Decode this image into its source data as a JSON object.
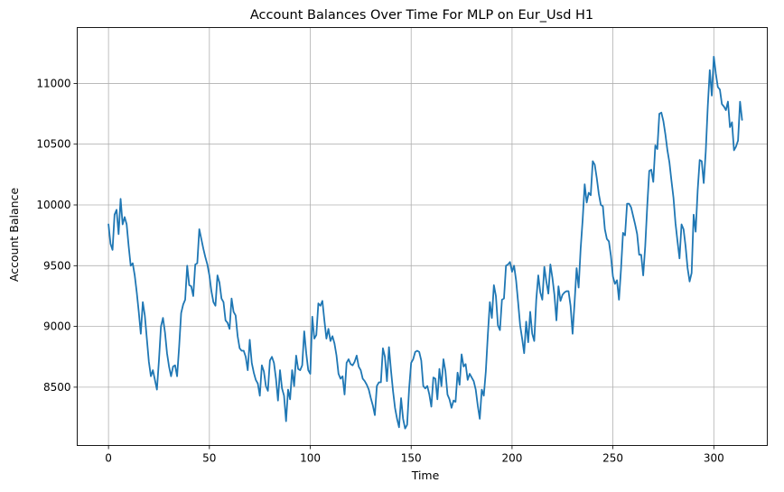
{
  "chart_data": {
    "type": "line",
    "title": "Account Balances Over Time For MLP on Eur_Usd H1",
    "xlabel": "Time",
    "ylabel": "Account Balance",
    "xlim": [
      -15.5,
      326.5
    ],
    "ylim": [
      8020,
      11460
    ],
    "x_ticks": [
      0,
      50,
      100,
      150,
      200,
      250,
      300
    ],
    "y_ticks": [
      8500,
      9000,
      9500,
      10000,
      10500,
      11000
    ],
    "x_tick_labels": [
      "0",
      "50",
      "100",
      "150",
      "200",
      "250",
      "300"
    ],
    "y_tick_labels": [
      "8500",
      "9000",
      "9500",
      "10000",
      "10500",
      "11000"
    ],
    "grid": true,
    "line_color": "#1f77b4",
    "series": [
      {
        "values": [
          9840,
          9680,
          9630,
          9920,
          9960,
          9760,
          10050,
          9840,
          9900,
          9840,
          9660,
          9500,
          9520,
          9420,
          9280,
          9120,
          8940,
          9200,
          9090,
          8900,
          8710,
          8590,
          8640,
          8560,
          8480,
          8720,
          9000,
          9070,
          8950,
          8780,
          8670,
          8590,
          8670,
          8680,
          8590,
          8830,
          9110,
          9180,
          9220,
          9500,
          9340,
          9330,
          9250,
          9510,
          9520,
          9800,
          9720,
          9640,
          9570,
          9510,
          9420,
          9290,
          9200,
          9170,
          9420,
          9360,
          9230,
          9200,
          9050,
          9030,
          8980,
          9230,
          9120,
          9090,
          8920,
          8820,
          8800,
          8800,
          8750,
          8640,
          8890,
          8700,
          8620,
          8560,
          8530,
          8430,
          8680,
          8630,
          8510,
          8470,
          8720,
          8750,
          8700,
          8570,
          8390,
          8640,
          8490,
          8430,
          8220,
          8480,
          8400,
          8640,
          8510,
          8760,
          8650,
          8640,
          8680,
          8960,
          8780,
          8640,
          8610,
          9080,
          8900,
          8930,
          9190,
          9170,
          9210,
          9050,
          8900,
          8980,
          8880,
          8920,
          8860,
          8760,
          8610,
          8570,
          8590,
          8440,
          8700,
          8730,
          8690,
          8680,
          8710,
          8760,
          8670,
          8640,
          8570,
          8550,
          8520,
          8480,
          8410,
          8350,
          8270,
          8510,
          8540,
          8540,
          8820,
          8750,
          8550,
          8830,
          8640,
          8470,
          8330,
          8240,
          8170,
          8410,
          8240,
          8160,
          8190,
          8490,
          8700,
          8730,
          8790,
          8800,
          8790,
          8720,
          8510,
          8490,
          8510,
          8440,
          8340,
          8580,
          8570,
          8400,
          8650,
          8510,
          8730,
          8630,
          8440,
          8400,
          8330,
          8390,
          8380,
          8620,
          8520,
          8770,
          8670,
          8690,
          8560,
          8610,
          8580,
          8550,
          8480,
          8350,
          8240,
          8480,
          8430,
          8630,
          8930,
          9200,
          9070,
          9340,
          9250,
          9010,
          8970,
          9220,
          9230,
          9500,
          9510,
          9530,
          9450,
          9500,
          9380,
          9200,
          9010,
          8900,
          8780,
          9040,
          8870,
          9120,
          8940,
          8880,
          9220,
          9420,
          9280,
          9220,
          9490,
          9370,
          9270,
          9510,
          9400,
          9260,
          9050,
          9330,
          9210,
          9260,
          9280,
          9290,
          9290,
          9170,
          8940,
          9200,
          9480,
          9320,
          9640,
          9880,
          10170,
          10020,
          10100,
          10080,
          10360,
          10330,
          10220,
          10090,
          10000,
          9990,
          9800,
          9720,
          9700,
          9580,
          9410,
          9350,
          9380,
          9220,
          9470,
          9770,
          9750,
          10010,
          10010,
          9980,
          9910,
          9840,
          9760,
          9590,
          9590,
          9420,
          9660,
          9990,
          10280,
          10290,
          10190,
          10490,
          10460,
          10750,
          10760,
          10690,
          10580,
          10450,
          10350,
          10200,
          10060,
          9850,
          9700,
          9560,
          9840,
          9800,
          9660,
          9480,
          9370,
          9440,
          9920,
          9780,
          10120,
          10370,
          10360,
          10180,
          10440,
          10810,
          11110,
          10900,
          11220,
          11080,
          10970,
          10950,
          10830,
          10810,
          10780,
          10850,
          10640,
          10680,
          10450,
          10480,
          10530,
          10850,
          10700
        ]
      }
    ]
  }
}
